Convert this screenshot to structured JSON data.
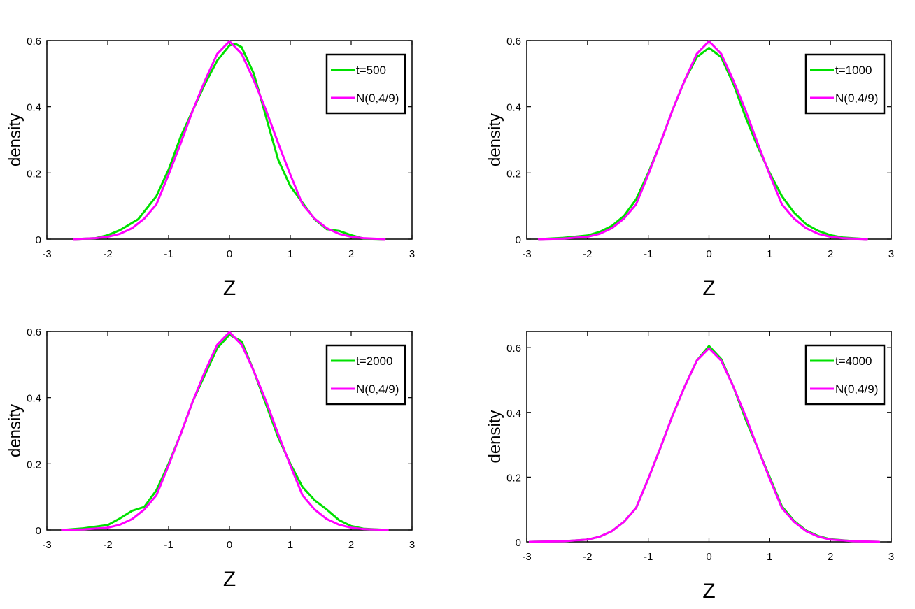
{
  "chart_data": [
    {
      "type": "line",
      "xlabel": "Z",
      "ylabel": "density",
      "xlim": [
        -3,
        3
      ],
      "ylim": [
        0,
        0.6
      ],
      "xticks": [
        "-3",
        "-2",
        "-1",
        "0",
        "1",
        "2",
        "3"
      ],
      "yticks": [
        "0",
        "0.2",
        "0.4",
        "0.6"
      ],
      "grid": false,
      "legend_position": "top-right",
      "series": [
        {
          "name": "t=500",
          "color": "#00e000",
          "x": [
            -2.55,
            -2.2,
            -2.0,
            -1.8,
            -1.5,
            -1.2,
            -1.0,
            -0.8,
            -0.6,
            -0.4,
            -0.2,
            0.0,
            0.1,
            0.2,
            0.4,
            0.6,
            0.8,
            1.0,
            1.2,
            1.4,
            1.6,
            1.8,
            2.0,
            2.2,
            2.55
          ],
          "values": [
            0.0,
            0.003,
            0.012,
            0.027,
            0.06,
            0.13,
            0.21,
            0.31,
            0.39,
            0.47,
            0.54,
            0.585,
            0.59,
            0.58,
            0.5,
            0.37,
            0.24,
            0.16,
            0.11,
            0.06,
            0.03,
            0.025,
            0.012,
            0.002,
            0.0
          ]
        },
        {
          "name": "N(0,4/9)",
          "color": "#ff00ff",
          "x": [
            -2.55,
            -2.2,
            -2.0,
            -1.8,
            -1.6,
            -1.4,
            -1.2,
            -1.0,
            -0.8,
            -0.6,
            -0.4,
            -0.2,
            0.0,
            0.2,
            0.4,
            0.6,
            0.8,
            1.0,
            1.2,
            1.4,
            1.6,
            1.8,
            2.0,
            2.2,
            2.55
          ],
          "values": [
            0.0,
            0.003,
            0.007,
            0.016,
            0.033,
            0.062,
            0.105,
            0.195,
            0.29,
            0.39,
            0.48,
            0.56,
            0.598,
            0.56,
            0.48,
            0.39,
            0.29,
            0.195,
            0.105,
            0.062,
            0.033,
            0.016,
            0.007,
            0.003,
            0.0
          ]
        }
      ]
    },
    {
      "type": "line",
      "xlabel": "Z",
      "ylabel": "density",
      "xlim": [
        -3,
        3
      ],
      "ylim": [
        0,
        0.6
      ],
      "xticks": [
        "-3",
        "-2",
        "-1",
        "0",
        "1",
        "2",
        "3"
      ],
      "yticks": [
        "0",
        "0.2",
        "0.4",
        "0.6"
      ],
      "grid": false,
      "legend_position": "top-right",
      "series": [
        {
          "name": "t=1000",
          "color": "#00e000",
          "x": [
            -2.8,
            -2.4,
            -2.0,
            -1.8,
            -1.6,
            -1.4,
            -1.2,
            -1.0,
            -0.8,
            -0.6,
            -0.4,
            -0.2,
            0.0,
            0.2,
            0.4,
            0.6,
            0.8,
            1.0,
            1.2,
            1.4,
            1.6,
            1.8,
            2.0,
            2.2,
            2.6
          ],
          "values": [
            0.0,
            0.004,
            0.011,
            0.022,
            0.04,
            0.07,
            0.12,
            0.2,
            0.29,
            0.39,
            0.48,
            0.55,
            0.578,
            0.55,
            0.47,
            0.37,
            0.28,
            0.2,
            0.13,
            0.08,
            0.045,
            0.025,
            0.012,
            0.005,
            0.0
          ]
        },
        {
          "name": "N(0,4/9)",
          "color": "#ff00ff",
          "x": [
            -2.8,
            -2.4,
            -2.0,
            -1.8,
            -1.6,
            -1.4,
            -1.2,
            -1.0,
            -0.8,
            -0.6,
            -0.4,
            -0.2,
            0.0,
            0.2,
            0.4,
            0.6,
            0.8,
            1.0,
            1.2,
            1.4,
            1.6,
            1.8,
            2.0,
            2.2,
            2.6
          ],
          "values": [
            0.0,
            0.002,
            0.007,
            0.016,
            0.033,
            0.062,
            0.105,
            0.195,
            0.29,
            0.39,
            0.48,
            0.56,
            0.598,
            0.56,
            0.48,
            0.39,
            0.29,
            0.195,
            0.105,
            0.062,
            0.033,
            0.016,
            0.007,
            0.003,
            0.0
          ]
        }
      ]
    },
    {
      "type": "line",
      "xlabel": "Z",
      "ylabel": "density",
      "xlim": [
        -3,
        3
      ],
      "ylim": [
        0,
        0.6
      ],
      "xticks": [
        "-3",
        "-2",
        "-1",
        "0",
        "1",
        "2",
        "3"
      ],
      "yticks": [
        "0",
        "0.2",
        "0.4",
        "0.6"
      ],
      "grid": false,
      "legend_position": "top-right",
      "series": [
        {
          "name": "t=2000",
          "color": "#00e000",
          "x": [
            -2.75,
            -2.4,
            -2.0,
            -1.8,
            -1.6,
            -1.4,
            -1.2,
            -1.0,
            -0.8,
            -0.6,
            -0.4,
            -0.2,
            0.0,
            0.2,
            0.4,
            0.6,
            0.8,
            1.0,
            1.2,
            1.4,
            1.6,
            1.8,
            2.0,
            2.2,
            2.6
          ],
          "values": [
            0.0,
            0.005,
            0.015,
            0.035,
            0.058,
            0.07,
            0.12,
            0.2,
            0.29,
            0.39,
            0.47,
            0.55,
            0.59,
            0.57,
            0.48,
            0.38,
            0.28,
            0.2,
            0.13,
            0.09,
            0.062,
            0.03,
            0.012,
            0.004,
            0.0
          ]
        },
        {
          "name": "N(0,4/9)",
          "color": "#ff00ff",
          "x": [
            -2.75,
            -2.4,
            -2.0,
            -1.8,
            -1.6,
            -1.4,
            -1.2,
            -1.0,
            -0.8,
            -0.6,
            -0.4,
            -0.2,
            0.0,
            0.2,
            0.4,
            0.6,
            0.8,
            1.0,
            1.2,
            1.4,
            1.6,
            1.8,
            2.0,
            2.2,
            2.6
          ],
          "values": [
            0.0,
            0.002,
            0.007,
            0.016,
            0.033,
            0.062,
            0.105,
            0.195,
            0.29,
            0.39,
            0.48,
            0.56,
            0.598,
            0.56,
            0.48,
            0.39,
            0.29,
            0.195,
            0.105,
            0.062,
            0.033,
            0.016,
            0.007,
            0.003,
            0.0
          ]
        }
      ]
    },
    {
      "type": "line",
      "xlabel": "Z",
      "ylabel": "density",
      "xlim": [
        -3,
        3
      ],
      "ylim": [
        0,
        0.65
      ],
      "xticks": [
        "-3",
        "-2",
        "-1",
        "0",
        "1",
        "2",
        "3"
      ],
      "yticks": [
        "0",
        "0.2",
        "0.4",
        "0.6"
      ],
      "grid": false,
      "legend_position": "top-right",
      "series": [
        {
          "name": "t=4000",
          "color": "#00e000",
          "x": [
            -2.95,
            -2.4,
            -2.0,
            -1.8,
            -1.6,
            -1.4,
            -1.2,
            -1.0,
            -0.8,
            -0.6,
            -0.4,
            -0.2,
            0.0,
            0.2,
            0.4,
            0.6,
            0.8,
            1.0,
            1.2,
            1.4,
            1.6,
            1.8,
            2.0,
            2.4,
            2.8
          ],
          "values": [
            0.0,
            0.002,
            0.007,
            0.016,
            0.033,
            0.062,
            0.105,
            0.195,
            0.29,
            0.39,
            0.48,
            0.56,
            0.605,
            0.565,
            0.48,
            0.38,
            0.29,
            0.2,
            0.11,
            0.065,
            0.035,
            0.018,
            0.008,
            0.002,
            0.0
          ]
        },
        {
          "name": "N(0,4/9)",
          "color": "#ff00ff",
          "x": [
            -2.95,
            -2.4,
            -2.0,
            -1.8,
            -1.6,
            -1.4,
            -1.2,
            -1.0,
            -0.8,
            -0.6,
            -0.4,
            -0.2,
            0.0,
            0.2,
            0.4,
            0.6,
            0.8,
            1.0,
            1.2,
            1.4,
            1.6,
            1.8,
            2.0,
            2.4,
            2.8
          ],
          "values": [
            0.0,
            0.002,
            0.007,
            0.016,
            0.033,
            0.062,
            0.105,
            0.195,
            0.29,
            0.39,
            0.48,
            0.56,
            0.598,
            0.56,
            0.48,
            0.39,
            0.29,
            0.195,
            0.105,
            0.062,
            0.033,
            0.016,
            0.007,
            0.002,
            0.0
          ]
        }
      ]
    }
  ]
}
